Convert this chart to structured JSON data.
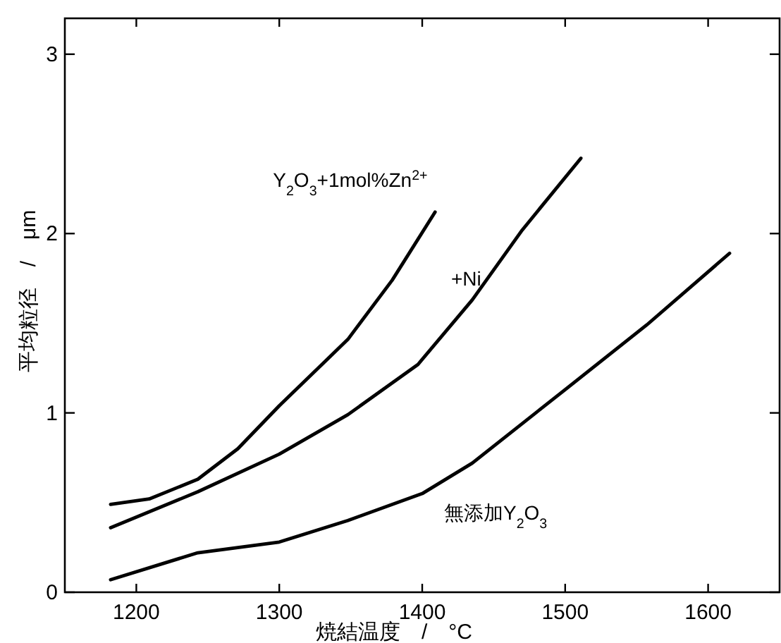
{
  "chart_data": {
    "type": "line",
    "xlabel": "焼結温度　/　°C",
    "ylabel": "平均粒径　/　μm",
    "xlim": [
      1150,
      1650
    ],
    "ylim": [
      0,
      3.2
    ],
    "xticks": [
      1200,
      1300,
      1400,
      1500,
      1600
    ],
    "yticks": [
      0,
      1,
      2,
      3
    ],
    "grid": false,
    "series": [
      {
        "name": "Y$_{2}$O$_{3}$+1mol%Zn$^{2+}$",
        "color": "#000000",
        "x": [
          1182,
          1209,
          1243,
          1271,
          1300,
          1348,
          1379,
          1409
        ],
        "values": [
          0.49,
          0.52,
          0.63,
          0.8,
          1.04,
          1.41,
          1.74,
          2.12
        ]
      },
      {
        "name": "+Ni",
        "color": "#000000",
        "x": [
          1182,
          1243,
          1300,
          1348,
          1397,
          1435,
          1470,
          1511
        ],
        "values": [
          0.36,
          0.56,
          0.77,
          0.99,
          1.27,
          1.63,
          2.02,
          2.42
        ]
      },
      {
        "name": "無添加Y$_{2}$O$_{3}$",
        "color": "#000000",
        "x": [
          1182,
          1243,
          1300,
          1348,
          1400,
          1435,
          1500,
          1557,
          1615
        ],
        "values": [
          0.07,
          0.22,
          0.28,
          0.4,
          0.55,
          0.72,
          1.13,
          1.49,
          1.89
        ]
      }
    ]
  }
}
